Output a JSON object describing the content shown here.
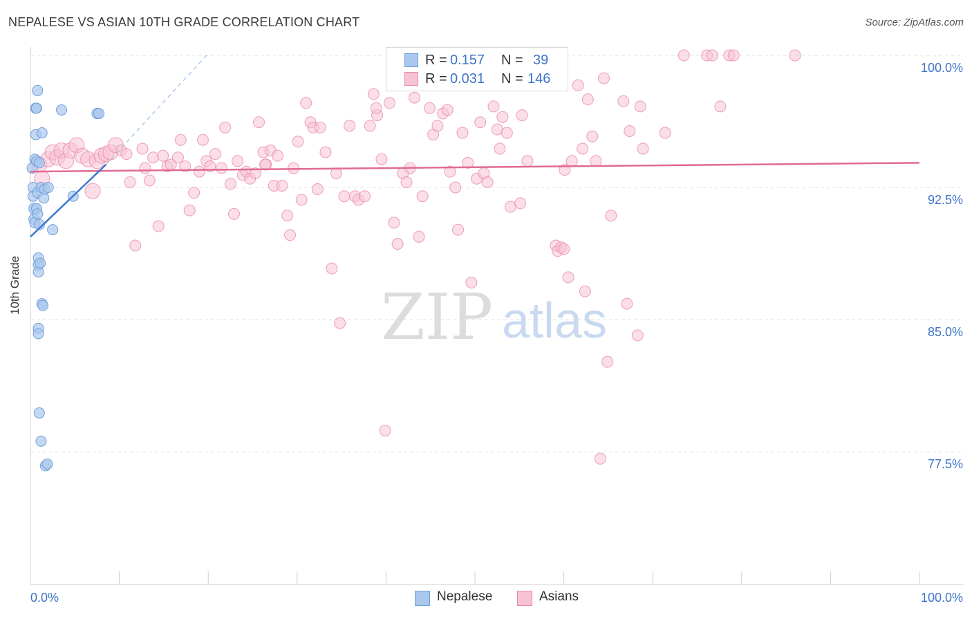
{
  "title": "NEPALESE VS ASIAN 10TH GRADE CORRELATION CHART",
  "source": "Source: ZipAtlas.com",
  "watermark": {
    "zip": "ZIP",
    "atlas": "atlas"
  },
  "colors": {
    "blue_fill": "#aac8ee",
    "blue_stroke": "#6f9fd8",
    "blue_line": "#3a78d0",
    "pink_fill": "#f7c3d3",
    "pink_stroke": "#e98aa8",
    "pink_line": "#e06a94",
    "value_text": "#3d74c9",
    "grid": "#e3e3e3"
  },
  "legend": {
    "rows": [
      {
        "series": "Nepalese",
        "r_label": "R = ",
        "r_value": "0.157",
        "n_label": "N = ",
        "n_value": "39"
      },
      {
        "series": "Asians",
        "r_label": "R = ",
        "r_value": "0.031",
        "n_label": "N = ",
        "n_value": "146"
      }
    ]
  },
  "chart_data": {
    "type": "scatter",
    "title": "NEPALESE VS ASIAN 10TH GRADE CORRELATION CHART",
    "xlabel": "",
    "ylabel": "10th Grade",
    "xlim": [
      0,
      100
    ],
    "ylim": [
      71.0,
      101.5
    ],
    "x_tick_labels": [
      "0.0%",
      "100.0%"
    ],
    "y_ticks": [
      100.0,
      92.5,
      85.0,
      77.5
    ],
    "y_tick_labels": [
      "100.0%",
      "92.5%",
      "85.0%",
      "77.5%"
    ],
    "grid": true,
    "legend_position": "bottom",
    "series": [
      {
        "name": "Nepalese",
        "r": 0.157,
        "n": 39,
        "trend": {
          "x0": 0,
          "y0": 89.7,
          "x1": 8.5,
          "y1": 93.8
        },
        "trend_extension": {
          "x0": 8.5,
          "y0": 93.8,
          "x1": 20,
          "y1": 100.1
        },
        "points": [
          [
            0.2,
            93.6
          ],
          [
            0.3,
            92.5
          ],
          [
            0.3,
            92.0
          ],
          [
            0.4,
            91.3
          ],
          [
            0.4,
            90.7
          ],
          [
            0.5,
            90.5
          ],
          [
            0.5,
            94.1
          ],
          [
            0.6,
            95.5
          ],
          [
            0.6,
            97.0
          ],
          [
            0.7,
            97.0
          ],
          [
            0.7,
            94.0
          ],
          [
            0.7,
            91.3
          ],
          [
            0.8,
            98.0
          ],
          [
            0.8,
            92.2
          ],
          [
            0.8,
            91.0
          ],
          [
            0.9,
            88.5
          ],
          [
            0.9,
            88.1
          ],
          [
            0.9,
            87.7
          ],
          [
            0.9,
            84.5
          ],
          [
            0.9,
            84.2
          ],
          [
            1.0,
            93.9
          ],
          [
            1.0,
            90.4
          ],
          [
            1.0,
            79.7
          ],
          [
            1.1,
            88.2
          ],
          [
            1.2,
            92.5
          ],
          [
            1.2,
            78.1
          ],
          [
            1.3,
            95.6
          ],
          [
            1.3,
            85.9
          ],
          [
            1.4,
            85.8
          ],
          [
            1.5,
            91.9
          ],
          [
            1.6,
            92.4
          ],
          [
            1.7,
            76.7
          ],
          [
            1.9,
            76.8
          ],
          [
            2.0,
            92.5
          ],
          [
            2.5,
            90.1
          ],
          [
            3.5,
            96.9
          ],
          [
            4.8,
            92.0
          ],
          [
            7.5,
            96.7
          ],
          [
            7.7,
            96.7
          ]
        ]
      },
      {
        "name": "Asians",
        "r": 0.031,
        "n": 146,
        "trend": {
          "x0": 0,
          "y0": 93.4,
          "x1": 100,
          "y1": 93.9
        },
        "points": [
          [
            1.0,
            93.8
          ],
          [
            1.3,
            93.0
          ],
          [
            2.0,
            94.1
          ],
          [
            2.5,
            94.5
          ],
          [
            3.0,
            94.2
          ],
          [
            3.5,
            94.6
          ],
          [
            4.0,
            94.0
          ],
          [
            4.5,
            94.6
          ],
          [
            5.2,
            94.9
          ],
          [
            5.8,
            94.3
          ],
          [
            6.5,
            94.1
          ],
          [
            7.0,
            92.3
          ],
          [
            7.5,
            94.0
          ],
          [
            8.0,
            94.3
          ],
          [
            8.5,
            94.4
          ],
          [
            9.0,
            94.5
          ],
          [
            9.6,
            94.9
          ],
          [
            10.2,
            94.6
          ],
          [
            10.8,
            94.4
          ],
          [
            11.2,
            92.8
          ],
          [
            11.8,
            89.2
          ],
          [
            12.6,
            94.7
          ],
          [
            12.9,
            93.6
          ],
          [
            13.4,
            92.9
          ],
          [
            13.8,
            94.2
          ],
          [
            14.4,
            90.3
          ],
          [
            14.9,
            94.3
          ],
          [
            15.4,
            93.7
          ],
          [
            15.8,
            93.8
          ],
          [
            16.6,
            94.2
          ],
          [
            16.9,
            95.2
          ],
          [
            17.4,
            93.7
          ],
          [
            17.9,
            91.2
          ],
          [
            18.4,
            92.2
          ],
          [
            19.0,
            93.4
          ],
          [
            19.4,
            95.2
          ],
          [
            19.8,
            94.0
          ],
          [
            20.2,
            93.7
          ],
          [
            20.8,
            94.4
          ],
          [
            21.5,
            93.6
          ],
          [
            21.9,
            95.9
          ],
          [
            22.5,
            92.7
          ],
          [
            22.9,
            91.0
          ],
          [
            23.3,
            94.0
          ],
          [
            23.9,
            93.2
          ],
          [
            24.3,
            93.4
          ],
          [
            24.7,
            93.0
          ],
          [
            25.3,
            93.3
          ],
          [
            25.7,
            96.2
          ],
          [
            26.2,
            94.5
          ],
          [
            26.5,
            93.8
          ],
          [
            27.0,
            94.6
          ],
          [
            27.4,
            92.6
          ],
          [
            27.8,
            94.3
          ],
          [
            28.3,
            92.6
          ],
          [
            28.9,
            90.9
          ],
          [
            29.2,
            89.8
          ],
          [
            29.6,
            93.6
          ],
          [
            30.1,
            95.1
          ],
          [
            30.5,
            91.8
          ],
          [
            31.0,
            97.3
          ],
          [
            31.5,
            96.2
          ],
          [
            31.8,
            95.9
          ],
          [
            32.3,
            92.4
          ],
          [
            32.6,
            95.9
          ],
          [
            33.2,
            94.5
          ],
          [
            33.9,
            87.9
          ],
          [
            34.4,
            93.3
          ],
          [
            34.8,
            84.8
          ],
          [
            35.3,
            92.0
          ],
          [
            35.9,
            96.0
          ],
          [
            36.5,
            92.0
          ],
          [
            36.9,
            91.8
          ],
          [
            37.6,
            92.0
          ],
          [
            38.2,
            96.0
          ],
          [
            38.6,
            97.8
          ],
          [
            39.0,
            96.6
          ],
          [
            39.5,
            94.1
          ],
          [
            39.9,
            78.7
          ],
          [
            40.4,
            97.3
          ],
          [
            40.9,
            90.5
          ],
          [
            41.3,
            89.3
          ],
          [
            41.9,
            93.3
          ],
          [
            42.3,
            92.8
          ],
          [
            42.7,
            93.6
          ],
          [
            43.2,
            97.6
          ],
          [
            43.7,
            89.7
          ],
          [
            44.1,
            92.0
          ],
          [
            44.9,
            97.0
          ],
          [
            45.3,
            95.5
          ],
          [
            45.8,
            96.0
          ],
          [
            46.4,
            96.7
          ],
          [
            46.9,
            96.9
          ],
          [
            47.2,
            93.4
          ],
          [
            47.8,
            92.5
          ],
          [
            48.1,
            90.1
          ],
          [
            48.6,
            95.6
          ],
          [
            49.2,
            93.9
          ],
          [
            49.6,
            87.1
          ],
          [
            50.2,
            93.0
          ],
          [
            50.6,
            96.2
          ],
          [
            51.0,
            93.3
          ],
          [
            51.4,
            92.8
          ],
          [
            52.1,
            97.1
          ],
          [
            52.5,
            95.8
          ],
          [
            52.8,
            94.7
          ],
          [
            53.1,
            96.5
          ],
          [
            53.6,
            95.6
          ],
          [
            54.0,
            91.4
          ],
          [
            54.5,
            98.5
          ],
          [
            55.1,
            91.6
          ],
          [
            55.3,
            96.6
          ],
          [
            55.9,
            94.0
          ],
          [
            59.1,
            89.2
          ],
          [
            59.3,
            88.9
          ],
          [
            59.7,
            89.1
          ],
          [
            60.1,
            93.5
          ],
          [
            60.5,
            87.4
          ],
          [
            60.9,
            94.0
          ],
          [
            61.6,
            98.3
          ],
          [
            62.1,
            94.7
          ],
          [
            62.4,
            86.6
          ],
          [
            63.2,
            95.4
          ],
          [
            63.6,
            94.0
          ],
          [
            64.5,
            98.7
          ],
          [
            64.9,
            82.6
          ],
          [
            65.3,
            90.9
          ],
          [
            66.7,
            97.4
          ],
          [
            67.1,
            85.9
          ],
          [
            67.4,
            95.7
          ],
          [
            68.3,
            84.1
          ],
          [
            68.6,
            97.1
          ],
          [
            68.9,
            94.7
          ],
          [
            71.4,
            95.6
          ],
          [
            73.5,
            100.0
          ],
          [
            76.1,
            100.0
          ],
          [
            76.7,
            100.0
          ],
          [
            77.6,
            97.1
          ],
          [
            78.6,
            100.0
          ],
          [
            79.1,
            100.0
          ],
          [
            64.1,
            77.1
          ],
          [
            62.7,
            97.5
          ],
          [
            38.9,
            97.0
          ],
          [
            60.0,
            89.0
          ],
          [
            86.0,
            100.0
          ],
          [
            26.4,
            93.8
          ]
        ]
      }
    ]
  },
  "bottom_legend": [
    {
      "label": "Nepalese"
    },
    {
      "label": "Asians"
    }
  ]
}
